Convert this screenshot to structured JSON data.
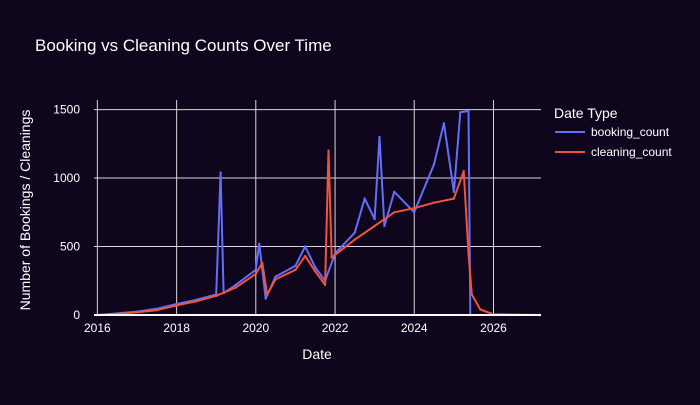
{
  "chart_data": {
    "type": "line",
    "title": "Booking vs Cleaning Counts Over Time",
    "xlabel": "Date",
    "ylabel": "Number of Bookings / Cleanings",
    "x_range": [
      "2015-12-01",
      "2027-03-15"
    ],
    "ylim": [
      0,
      1570
    ],
    "x_ticks": [
      "2016",
      "2018",
      "2020",
      "2022",
      "2024",
      "2026"
    ],
    "y_ticks": [
      "0",
      "500",
      "1000",
      "1500"
    ],
    "y_tick_values": [
      0,
      500,
      1000,
      1500
    ],
    "grid": true,
    "legend": {
      "title": "Date Type",
      "placement": "right"
    },
    "series": [
      {
        "name": "booking_count",
        "color": "#636efa",
        "points": [
          [
            "2016-01-01",
            0
          ],
          [
            "2016-07-01",
            12
          ],
          [
            "2017-01-01",
            25
          ],
          [
            "2017-07-01",
            45
          ],
          [
            "2018-01-01",
            80
          ],
          [
            "2018-07-01",
            110
          ],
          [
            "2019-01-01",
            150
          ],
          [
            "2019-02-10",
            1040
          ],
          [
            "2019-03-10",
            160
          ],
          [
            "2019-07-01",
            220
          ],
          [
            "2020-01-01",
            330
          ],
          [
            "2020-02-01",
            520
          ],
          [
            "2020-04-01",
            120
          ],
          [
            "2020-07-01",
            280
          ],
          [
            "2021-01-01",
            360
          ],
          [
            "2021-04-01",
            500
          ],
          [
            "2021-07-01",
            350
          ],
          [
            "2021-10-01",
            250
          ],
          [
            "2022-01-01",
            450
          ],
          [
            "2022-07-01",
            600
          ],
          [
            "2022-10-01",
            850
          ],
          [
            "2023-01-01",
            700
          ],
          [
            "2023-02-15",
            1300
          ],
          [
            "2023-04-01",
            650
          ],
          [
            "2023-07-01",
            900
          ],
          [
            "2024-01-01",
            750
          ],
          [
            "2024-07-01",
            1100
          ],
          [
            "2024-10-01",
            1400
          ],
          [
            "2025-01-01",
            900
          ],
          [
            "2025-03-01",
            1480
          ],
          [
            "2025-05-15",
            1490
          ],
          [
            "2025-06-01",
            0
          ],
          [
            "2026-01-01",
            0
          ],
          [
            "2027-03-01",
            0
          ]
        ]
      },
      {
        "name": "cleaning_count",
        "color": "#ef553b",
        "points": [
          [
            "2016-01-01",
            0
          ],
          [
            "2016-07-01",
            8
          ],
          [
            "2017-01-01",
            20
          ],
          [
            "2017-07-01",
            35
          ],
          [
            "2018-01-01",
            70
          ],
          [
            "2018-07-01",
            100
          ],
          [
            "2019-01-01",
            140
          ],
          [
            "2019-07-01",
            200
          ],
          [
            "2020-01-01",
            300
          ],
          [
            "2020-03-01",
            380
          ],
          [
            "2020-04-15",
            150
          ],
          [
            "2020-07-01",
            260
          ],
          [
            "2021-01-01",
            330
          ],
          [
            "2021-04-01",
            430
          ],
          [
            "2021-07-01",
            320
          ],
          [
            "2021-10-01",
            220
          ],
          [
            "2021-11-01",
            1200
          ],
          [
            "2021-12-01",
            420
          ],
          [
            "2022-07-01",
            550
          ],
          [
            "2023-01-01",
            650
          ],
          [
            "2023-07-01",
            750
          ],
          [
            "2024-01-01",
            780
          ],
          [
            "2024-07-01",
            820
          ],
          [
            "2025-01-01",
            850
          ],
          [
            "2025-04-01",
            1050
          ],
          [
            "2025-05-15",
            450
          ],
          [
            "2025-06-15",
            150
          ],
          [
            "2025-09-01",
            40
          ],
          [
            "2026-01-01",
            5
          ],
          [
            "2027-03-01",
            0
          ]
        ]
      }
    ]
  }
}
